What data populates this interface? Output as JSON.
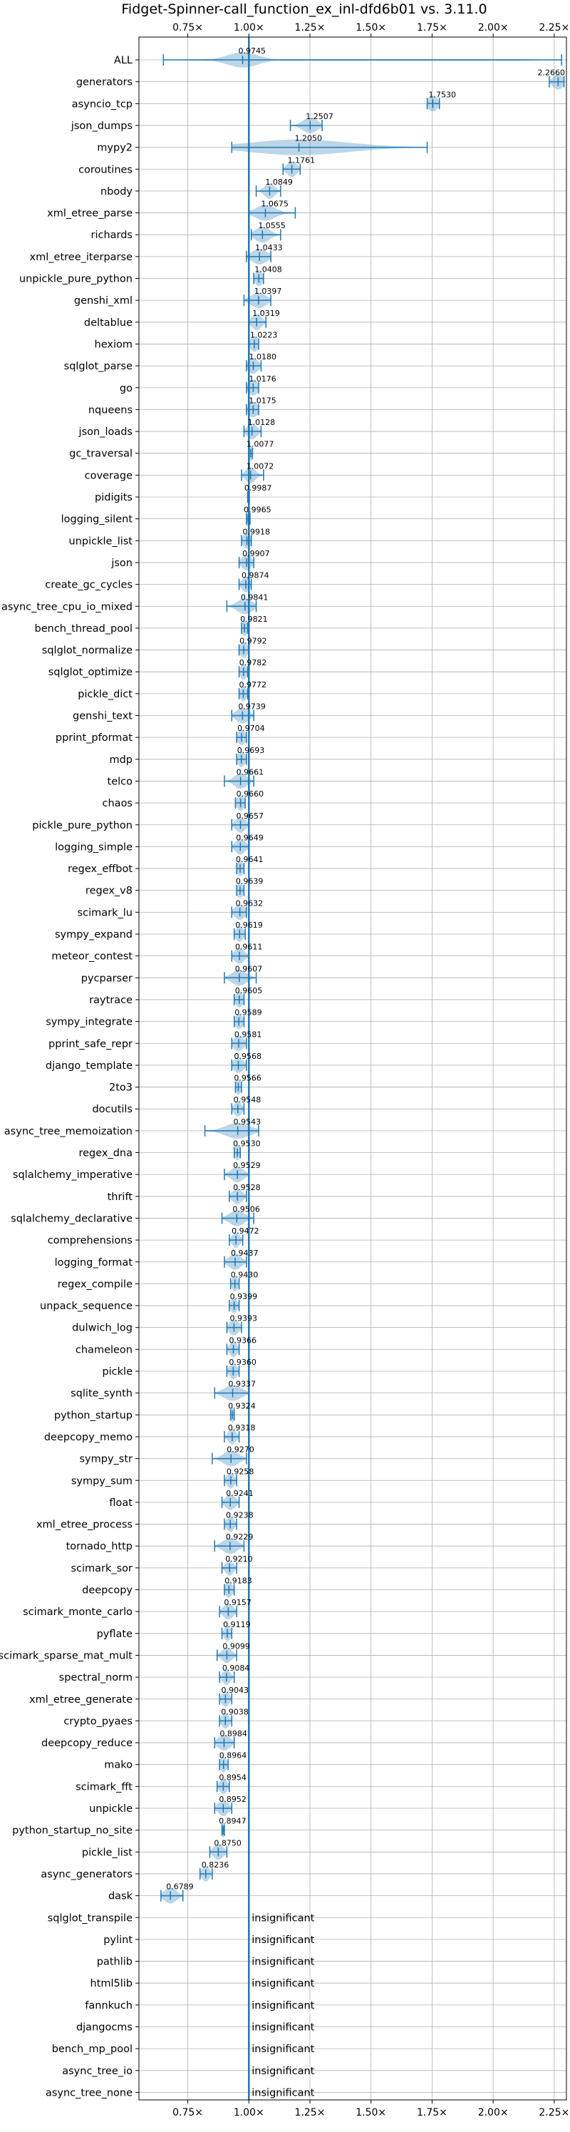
{
  "chart_data": {
    "type": "violin",
    "title": "Fidget-Spinner-call_function_ex_inl-dfd6b01 vs. 3.11.0",
    "x_ticks": [
      0.75,
      1.0,
      1.25,
      1.5,
      1.75,
      2.0,
      2.25
    ],
    "x_tick_labels": [
      "0.75×",
      "1.00×",
      "1.25×",
      "1.50×",
      "1.75×",
      "2.00×",
      "2.25×"
    ],
    "xlim": [
      0.55,
      2.3
    ],
    "grid": true,
    "reference_line": 1.0,
    "insignificant_text": "insignificant",
    "colors": {
      "violin": "#1f77b4",
      "reference": "#1f77b4",
      "grid": "#b0b0b0"
    },
    "benchmarks": [
      {
        "name": "ALL",
        "value": 0.9745,
        "label": "0.9745",
        "min": 0.65,
        "max": 2.28,
        "spread": 0.06
      },
      {
        "name": "generators",
        "value": 2.266,
        "label": "2.2660",
        "min": 2.23,
        "max": 2.29,
        "spread": 0.02
      },
      {
        "name": "asyncio_tcp",
        "value": 1.753,
        "label": "1.7530",
        "min": 1.73,
        "max": 1.78,
        "spread": 0.02
      },
      {
        "name": "json_dumps",
        "value": 1.2507,
        "label": "1.2507",
        "min": 1.17,
        "max": 1.3,
        "spread": 0.03
      },
      {
        "name": "mypy2",
        "value": 1.205,
        "label": "1.2050",
        "min": 0.93,
        "max": 1.73,
        "spread": 0.2
      },
      {
        "name": "coroutines",
        "value": 1.1761,
        "label": "1.1761",
        "min": 1.14,
        "max": 1.21,
        "spread": 0.02
      },
      {
        "name": "nbody",
        "value": 1.0849,
        "label": "1.0849",
        "min": 1.03,
        "max": 1.13,
        "spread": 0.02
      },
      {
        "name": "xml_etree_parse",
        "value": 1.0675,
        "label": "1.0675",
        "min": 1.0,
        "max": 1.19,
        "spread": 0.04
      },
      {
        "name": "richards",
        "value": 1.0555,
        "label": "1.0555",
        "min": 1.01,
        "max": 1.13,
        "spread": 0.03
      },
      {
        "name": "xml_etree_iterparse",
        "value": 1.0433,
        "label": "1.0433",
        "min": 0.99,
        "max": 1.09,
        "spread": 0.03
      },
      {
        "name": "unpickle_pure_python",
        "value": 1.0408,
        "label": "1.0408",
        "min": 1.02,
        "max": 1.06,
        "spread": 0.015
      },
      {
        "name": "genshi_xml",
        "value": 1.0397,
        "label": "1.0397",
        "min": 0.98,
        "max": 1.09,
        "spread": 0.03
      },
      {
        "name": "deltablue",
        "value": 1.0319,
        "label": "1.0319",
        "min": 1.0,
        "max": 1.07,
        "spread": 0.02
      },
      {
        "name": "hexiom",
        "value": 1.0223,
        "label": "1.0223",
        "min": 1.0,
        "max": 1.04,
        "spread": 0.015
      },
      {
        "name": "sqlglot_parse",
        "value": 1.018,
        "label": "1.0180",
        "min": 0.99,
        "max": 1.05,
        "spread": 0.02
      },
      {
        "name": "go",
        "value": 1.0176,
        "label": "1.0176",
        "min": 0.99,
        "max": 1.04,
        "spread": 0.02
      },
      {
        "name": "nqueens",
        "value": 1.0175,
        "label": "1.0175",
        "min": 0.99,
        "max": 1.04,
        "spread": 0.02
      },
      {
        "name": "json_loads",
        "value": 1.0128,
        "label": "1.0128",
        "min": 0.98,
        "max": 1.05,
        "spread": 0.02
      },
      {
        "name": "gc_traversal",
        "value": 1.0077,
        "label": "1.0077",
        "min": 1.0,
        "max": 1.015,
        "spread": 0.01
      },
      {
        "name": "coverage",
        "value": 1.0072,
        "label": "1.0072",
        "min": 0.97,
        "max": 1.06,
        "spread": 0.02
      },
      {
        "name": "pidigits",
        "value": 0.9987,
        "label": "0.9987",
        "min": 0.995,
        "max": 1.002,
        "spread": 0.005
      },
      {
        "name": "logging_silent",
        "value": 0.9965,
        "label": "0.9965",
        "min": 0.99,
        "max": 1.005,
        "spread": 0.01
      },
      {
        "name": "unpickle_list",
        "value": 0.9918,
        "label": "0.9918",
        "min": 0.97,
        "max": 1.01,
        "spread": 0.015
      },
      {
        "name": "json",
        "value": 0.9907,
        "label": "0.9907",
        "min": 0.96,
        "max": 1.02,
        "spread": 0.02
      },
      {
        "name": "create_gc_cycles",
        "value": 0.9874,
        "label": "0.9874",
        "min": 0.96,
        "max": 1.01,
        "spread": 0.015
      },
      {
        "name": "async_tree_cpu_io_mixed",
        "value": 0.9841,
        "label": "0.9841",
        "min": 0.91,
        "max": 1.03,
        "spread": 0.03
      },
      {
        "name": "bench_thread_pool",
        "value": 0.9821,
        "label": "0.9821",
        "min": 0.97,
        "max": 0.995,
        "spread": 0.012
      },
      {
        "name": "sqlglot_normalize",
        "value": 0.9792,
        "label": "0.9792",
        "min": 0.96,
        "max": 1.0,
        "spread": 0.015
      },
      {
        "name": "sqlglot_optimize",
        "value": 0.9782,
        "label": "0.9782",
        "min": 0.96,
        "max": 0.995,
        "spread": 0.012
      },
      {
        "name": "pickle_dict",
        "value": 0.9772,
        "label": "0.9772",
        "min": 0.96,
        "max": 0.995,
        "spread": 0.012
      },
      {
        "name": "genshi_text",
        "value": 0.9739,
        "label": "0.9739",
        "min": 0.93,
        "max": 1.02,
        "spread": 0.025
      },
      {
        "name": "pprint_pformat",
        "value": 0.9704,
        "label": "0.9704",
        "min": 0.95,
        "max": 0.99,
        "spread": 0.015
      },
      {
        "name": "mdp",
        "value": 0.9693,
        "label": "0.9693",
        "min": 0.95,
        "max": 0.99,
        "spread": 0.015
      },
      {
        "name": "telco",
        "value": 0.9661,
        "label": "0.9661",
        "min": 0.9,
        "max": 1.02,
        "spread": 0.025
      },
      {
        "name": "chaos",
        "value": 0.966,
        "label": "0.9660",
        "min": 0.945,
        "max": 0.985,
        "spread": 0.015
      },
      {
        "name": "pickle_pure_python",
        "value": 0.9657,
        "label": "0.9657",
        "min": 0.93,
        "max": 1.0,
        "spread": 0.02
      },
      {
        "name": "logging_simple",
        "value": 0.9649,
        "label": "0.9649",
        "min": 0.93,
        "max": 1.0,
        "spread": 0.02
      },
      {
        "name": "regex_effbot",
        "value": 0.9641,
        "label": "0.9641",
        "min": 0.95,
        "max": 0.98,
        "spread": 0.012
      },
      {
        "name": "regex_v8",
        "value": 0.9639,
        "label": "0.9639",
        "min": 0.95,
        "max": 0.98,
        "spread": 0.012
      },
      {
        "name": "scimark_lu",
        "value": 0.9632,
        "label": "0.9632",
        "min": 0.93,
        "max": 0.99,
        "spread": 0.02
      },
      {
        "name": "sympy_expand",
        "value": 0.9619,
        "label": "0.9619",
        "min": 0.94,
        "max": 0.985,
        "spread": 0.015
      },
      {
        "name": "meteor_contest",
        "value": 0.9611,
        "label": "0.9611",
        "min": 0.93,
        "max": 1.0,
        "spread": 0.02
      },
      {
        "name": "pycparser",
        "value": 0.9607,
        "label": "0.9607",
        "min": 0.9,
        "max": 1.03,
        "spread": 0.03
      },
      {
        "name": "raytrace",
        "value": 0.9605,
        "label": "0.9605",
        "min": 0.94,
        "max": 0.98,
        "spread": 0.015
      },
      {
        "name": "sympy_integrate",
        "value": 0.9589,
        "label": "0.9589",
        "min": 0.94,
        "max": 0.98,
        "spread": 0.015
      },
      {
        "name": "pprint_safe_repr",
        "value": 0.9581,
        "label": "0.9581",
        "min": 0.93,
        "max": 0.99,
        "spread": 0.02
      },
      {
        "name": "django_template",
        "value": 0.9568,
        "label": "0.9568",
        "min": 0.93,
        "max": 0.99,
        "spread": 0.02
      },
      {
        "name": "2to3",
        "value": 0.9566,
        "label": "0.9566",
        "min": 0.945,
        "max": 0.97,
        "spread": 0.01
      },
      {
        "name": "docutils",
        "value": 0.9548,
        "label": "0.9548",
        "min": 0.93,
        "max": 0.98,
        "spread": 0.015
      },
      {
        "name": "async_tree_memoization",
        "value": 0.9543,
        "label": "0.9543",
        "min": 0.82,
        "max": 1.04,
        "spread": 0.05
      },
      {
        "name": "regex_dna",
        "value": 0.953,
        "label": "0.9530",
        "min": 0.94,
        "max": 0.965,
        "spread": 0.01
      },
      {
        "name": "sqlalchemy_imperative",
        "value": 0.9529,
        "label": "0.9529",
        "min": 0.9,
        "max": 1.0,
        "spread": 0.025
      },
      {
        "name": "thrift",
        "value": 0.9528,
        "label": "0.9528",
        "min": 0.92,
        "max": 0.99,
        "spread": 0.02
      },
      {
        "name": "sqlalchemy_declarative",
        "value": 0.9506,
        "label": "0.9506",
        "min": 0.89,
        "max": 1.02,
        "spread": 0.03
      },
      {
        "name": "comprehensions",
        "value": 0.9472,
        "label": "0.9472",
        "min": 0.92,
        "max": 0.975,
        "spread": 0.015
      },
      {
        "name": "logging_format",
        "value": 0.9437,
        "label": "0.9437",
        "min": 0.9,
        "max": 0.99,
        "spread": 0.025
      },
      {
        "name": "regex_compile",
        "value": 0.943,
        "label": "0.9430",
        "min": 0.925,
        "max": 0.96,
        "spread": 0.012
      },
      {
        "name": "unpack_sequence",
        "value": 0.9399,
        "label": "0.9399",
        "min": 0.92,
        "max": 0.96,
        "spread": 0.012
      },
      {
        "name": "dulwich_log",
        "value": 0.9393,
        "label": "0.9393",
        "min": 0.91,
        "max": 0.97,
        "spread": 0.02
      },
      {
        "name": "chameleon",
        "value": 0.9366,
        "label": "0.9366",
        "min": 0.91,
        "max": 0.96,
        "spread": 0.015
      },
      {
        "name": "pickle",
        "value": 0.936,
        "label": "0.9360",
        "min": 0.91,
        "max": 0.96,
        "spread": 0.015
      },
      {
        "name": "sqlite_synth",
        "value": 0.9337,
        "label": "0.9337",
        "min": 0.86,
        "max": 1.0,
        "spread": 0.035
      },
      {
        "name": "python_startup",
        "value": 0.9324,
        "label": "0.9324",
        "min": 0.925,
        "max": 0.94,
        "spread": 0.008
      },
      {
        "name": "deepcopy_memo",
        "value": 0.9318,
        "label": "0.9318",
        "min": 0.9,
        "max": 0.96,
        "spread": 0.015
      },
      {
        "name": "sympy_str",
        "value": 0.927,
        "label": "0.9270",
        "min": 0.85,
        "max": 0.99,
        "spread": 0.03
      },
      {
        "name": "sympy_sum",
        "value": 0.9258,
        "label": "0.9258",
        "min": 0.9,
        "max": 0.95,
        "spread": 0.015
      },
      {
        "name": "float",
        "value": 0.9241,
        "label": "0.9241",
        "min": 0.89,
        "max": 0.96,
        "spread": 0.02
      },
      {
        "name": "xml_etree_process",
        "value": 0.9238,
        "label": "0.9238",
        "min": 0.9,
        "max": 0.95,
        "spread": 0.015
      },
      {
        "name": "tornado_http",
        "value": 0.9229,
        "label": "0.9229",
        "min": 0.86,
        "max": 0.98,
        "spread": 0.03
      },
      {
        "name": "scimark_sor",
        "value": 0.921,
        "label": "0.9210",
        "min": 0.89,
        "max": 0.95,
        "spread": 0.015
      },
      {
        "name": "deepcopy",
        "value": 0.9183,
        "label": "0.9183",
        "min": 0.9,
        "max": 0.94,
        "spread": 0.015
      },
      {
        "name": "scimark_monte_carlo",
        "value": 0.9157,
        "label": "0.9157",
        "min": 0.88,
        "max": 0.95,
        "spread": 0.02
      },
      {
        "name": "pyflate",
        "value": 0.9119,
        "label": "0.9119",
        "min": 0.89,
        "max": 0.93,
        "spread": 0.012
      },
      {
        "name": "scimark_sparse_mat_mult",
        "value": 0.9099,
        "label": "0.9099",
        "min": 0.87,
        "max": 0.95,
        "spread": 0.02
      },
      {
        "name": "spectral_norm",
        "value": 0.9084,
        "label": "0.9084",
        "min": 0.88,
        "max": 0.94,
        "spread": 0.015
      },
      {
        "name": "xml_etree_generate",
        "value": 0.9043,
        "label": "0.9043",
        "min": 0.88,
        "max": 0.93,
        "spread": 0.015
      },
      {
        "name": "crypto_pyaes",
        "value": 0.9038,
        "label": "0.9038",
        "min": 0.88,
        "max": 0.93,
        "spread": 0.015
      },
      {
        "name": "deepcopy_reduce",
        "value": 0.8984,
        "label": "0.8984",
        "min": 0.86,
        "max": 0.94,
        "spread": 0.025
      },
      {
        "name": "mako",
        "value": 0.8964,
        "label": "0.8964",
        "min": 0.88,
        "max": 0.915,
        "spread": 0.012
      },
      {
        "name": "scimark_fft",
        "value": 0.8954,
        "label": "0.8954",
        "min": 0.87,
        "max": 0.92,
        "spread": 0.015
      },
      {
        "name": "unpickle",
        "value": 0.8952,
        "label": "0.8952",
        "min": 0.86,
        "max": 0.93,
        "spread": 0.02
      },
      {
        "name": "python_startup_no_site",
        "value": 0.8947,
        "label": "0.8947",
        "min": 0.89,
        "max": 0.9,
        "spread": 0.006
      },
      {
        "name": "pickle_list",
        "value": 0.875,
        "label": "0.8750",
        "min": 0.84,
        "max": 0.91,
        "spread": 0.02
      },
      {
        "name": "async_generators",
        "value": 0.8236,
        "label": "0.8236",
        "min": 0.8,
        "max": 0.85,
        "spread": 0.015
      },
      {
        "name": "dask",
        "value": 0.6789,
        "label": "0.6789",
        "min": 0.64,
        "max": 0.73,
        "spread": 0.025
      },
      {
        "name": "sqlglot_transpile",
        "value": null,
        "label": null
      },
      {
        "name": "pylint",
        "value": null,
        "label": null
      },
      {
        "name": "pathlib",
        "value": null,
        "label": null
      },
      {
        "name": "html5lib",
        "value": null,
        "label": null
      },
      {
        "name": "fannkuch",
        "value": null,
        "label": null
      },
      {
        "name": "djangocms",
        "value": null,
        "label": null
      },
      {
        "name": "bench_mp_pool",
        "value": null,
        "label": null
      },
      {
        "name": "async_tree_io",
        "value": null,
        "label": null
      },
      {
        "name": "async_tree_none",
        "value": null,
        "label": null
      }
    ]
  }
}
